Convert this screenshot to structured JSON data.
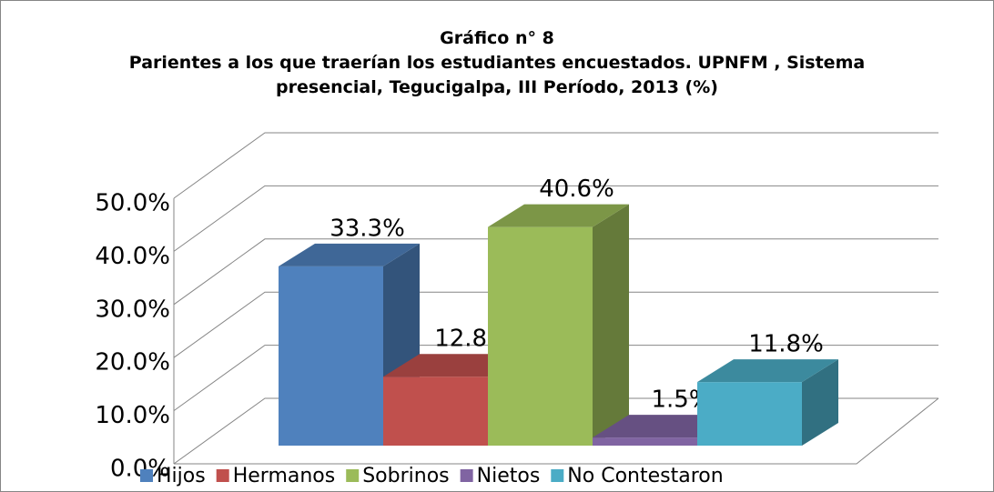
{
  "chart_data": {
    "type": "bar3d",
    "title": "Gráfico n° 8",
    "subtitle": "Parientes a los que traerían los estudiantes encuestados. UPNFM , Sistema presencial, Tegucigalpa, III Período, 2013 (%)",
    "categories": [
      "Hijos",
      "Hermanos",
      "Sobrinos",
      "Nietos",
      "No Contestaron"
    ],
    "values": [
      33.3,
      12.8,
      40.6,
      1.5,
      11.8
    ],
    "value_labels": [
      "33.3%",
      "12.8%",
      "40.6%",
      "1.5%",
      "11.8%"
    ],
    "colors": [
      "#4f81bd",
      "#c0504d",
      "#9bbb59",
      "#8064a2",
      "#4bacc6"
    ],
    "ylim": [
      0,
      50
    ],
    "yticks": [
      {
        "value": 0,
        "label": "0.0%"
      },
      {
        "value": 10,
        "label": "10.0%"
      },
      {
        "value": 20,
        "label": "20.0%"
      },
      {
        "value": 30,
        "label": "30.0%"
      },
      {
        "value": 40,
        "label": "40.0%"
      },
      {
        "value": 50,
        "label": "50.0%"
      }
    ],
    "grid": true,
    "legend": "bottom"
  }
}
